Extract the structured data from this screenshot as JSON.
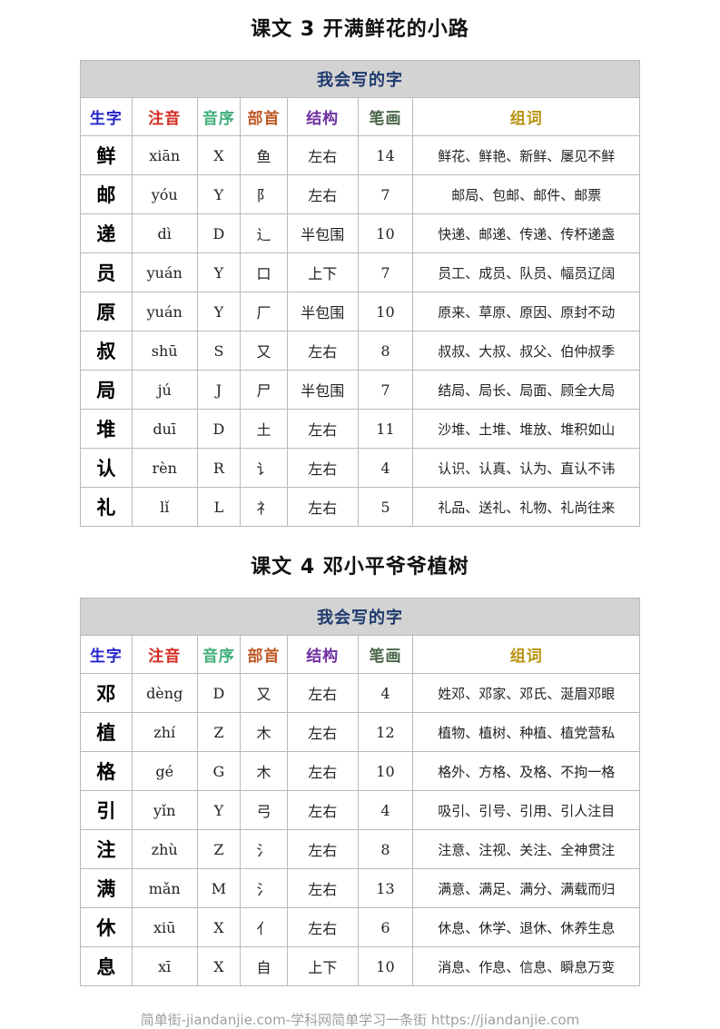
{
  "page": {
    "footer": "简单街-jiandanjie.com-学科网简单学习一条街 https://jiandanjie.com"
  },
  "colors": {
    "table_header_bg": "#d3d3d3",
    "table_header_text": "#1f3a6e",
    "col_shengzi": "#2323cc",
    "col_zhuyin": "#d42a22",
    "col_yinxu": "#3fae7a",
    "col_bushou": "#c05a28",
    "col_jiegou": "#7030a0",
    "col_bihua": "#4a6648",
    "col_zuci": "#b8920f",
    "border": "#b9b9b9",
    "footer_text": "#9e9e9e"
  },
  "sections": [
    {
      "title": "课文 3 开满鲜花的小路",
      "table_title": "我会写的字",
      "columns": [
        "生字",
        "注音",
        "音序",
        "部首",
        "结构",
        "笔画",
        "组词"
      ],
      "rows": [
        [
          "鲜",
          "xiān",
          "X",
          "鱼",
          "左右",
          "14",
          "鲜花、鲜艳、新鲜、屡见不鲜"
        ],
        [
          "邮",
          "yóu",
          "Y",
          "阝",
          "左右",
          "7",
          "邮局、包邮、邮件、邮票"
        ],
        [
          "递",
          "dì",
          "D",
          "辶",
          "半包围",
          "10",
          "快递、邮递、传递、传杯递盏"
        ],
        [
          "员",
          "yuán",
          "Y",
          "口",
          "上下",
          "7",
          "员工、成员、队员、幅员辽阔"
        ],
        [
          "原",
          "yuán",
          "Y",
          "厂",
          "半包围",
          "10",
          "原来、草原、原因、原封不动"
        ],
        [
          "叔",
          "shū",
          "S",
          "又",
          "左右",
          "8",
          "叔叔、大叔、叔父、伯仲叔季"
        ],
        [
          "局",
          "jú",
          "J",
          "尸",
          "半包围",
          "7",
          "结局、局长、局面、顾全大局"
        ],
        [
          "堆",
          "duī",
          "D",
          "土",
          "左右",
          "11",
          "沙堆、土堆、堆放、堆积如山"
        ],
        [
          "认",
          "rèn",
          "R",
          "讠",
          "左右",
          "4",
          "认识、认真、认为、直认不讳"
        ],
        [
          "礼",
          "lǐ",
          "L",
          "礻",
          "左右",
          "5",
          "礼品、送礼、礼物、礼尚往来"
        ]
      ]
    },
    {
      "title": "课文 4 邓小平爷爷植树",
      "table_title": "我会写的字",
      "columns": [
        "生字",
        "注音",
        "音序",
        "部首",
        "结构",
        "笔画",
        "组词"
      ],
      "rows": [
        [
          "邓",
          "dèng",
          "D",
          "又",
          "左右",
          "4",
          "姓邓、邓家、邓氏、涎眉邓眼"
        ],
        [
          "植",
          "zhí",
          "Z",
          "木",
          "左右",
          "12",
          "植物、植树、种植、植党营私"
        ],
        [
          "格",
          "gé",
          "G",
          "木",
          "左右",
          "10",
          "格外、方格、及格、不拘一格"
        ],
        [
          "引",
          "yǐn",
          "Y",
          "弓",
          "左右",
          "4",
          "吸引、引号、引用、引人注目"
        ],
        [
          "注",
          "zhù",
          "Z",
          "氵",
          "左右",
          "8",
          "注意、注视、关注、全神贯注"
        ],
        [
          "满",
          "mǎn",
          "M",
          "氵",
          "左右",
          "13",
          "满意、满足、满分、满载而归"
        ],
        [
          "休",
          "xiū",
          "X",
          "亻",
          "左右",
          "6",
          "休息、休学、退休、休养生息"
        ],
        [
          "息",
          "xī",
          "X",
          "自",
          "上下",
          "10",
          "消息、作息、信息、瞬息万变"
        ]
      ]
    }
  ]
}
